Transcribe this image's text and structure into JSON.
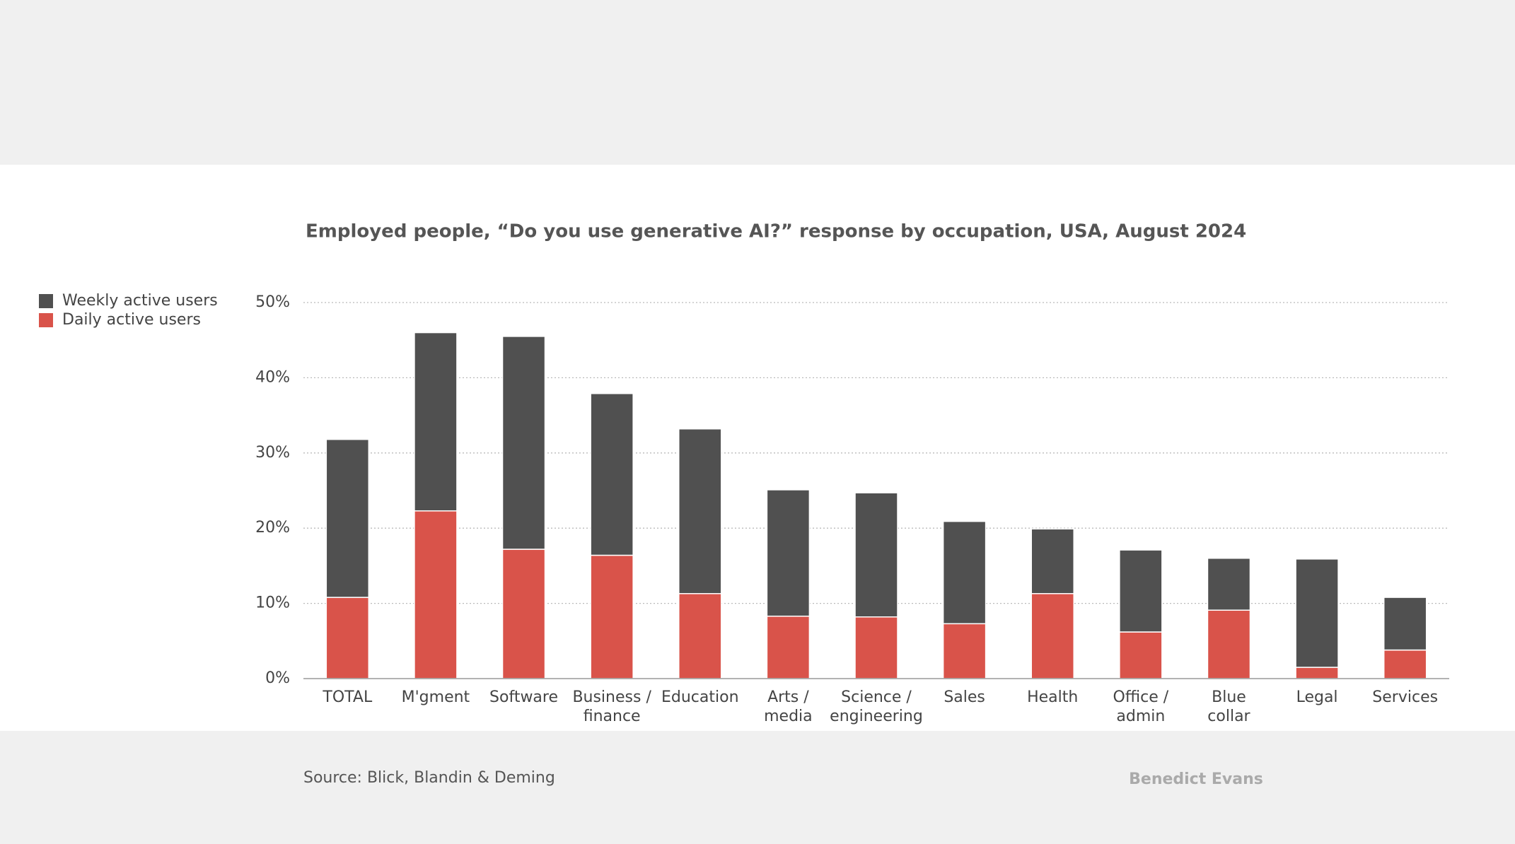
{
  "chart_data": {
    "type": "stacked_bar",
    "title": "Employed people, “Do you use generative AI?” response by occupation, USA, August 2024",
    "categories": [
      "TOTAL",
      "M'gment",
      "Software",
      "Business /\nfinance",
      "Education",
      "Arts /\nmedia",
      "Science /\nengineering",
      "Sales",
      "Health",
      "Office /\nadmin",
      "Blue\ncollar",
      "Legal",
      "Services"
    ],
    "series": [
      {
        "name": "Daily active users",
        "color": "#d9534a",
        "values": [
          10.8,
          22.3,
          17.2,
          16.4,
          11.3,
          8.3,
          8.2,
          7.3,
          11.3,
          6.2,
          9.1,
          1.5,
          3.8
        ]
      },
      {
        "name": "Weekly active users",
        "color": "#505050",
        "values": [
          21.0,
          23.7,
          28.3,
          21.5,
          21.9,
          16.8,
          16.5,
          13.6,
          8.6,
          10.9,
          6.9,
          14.4,
          7.0
        ]
      }
    ],
    "ylim": [
      0,
      50
    ],
    "yticks": [
      {
        "value": 0,
        "label": "0%"
      },
      {
        "value": 10,
        "label": "10%"
      },
      {
        "value": 20,
        "label": "20%"
      },
      {
        "value": 30,
        "label": "30%"
      },
      {
        "value": 40,
        "label": "40%"
      },
      {
        "value": 50,
        "label": "50%"
      }
    ],
    "grid": true,
    "legend": "left",
    "source": "Source: Blick, Blandin & Deming",
    "credit": "Benedict Evans"
  }
}
